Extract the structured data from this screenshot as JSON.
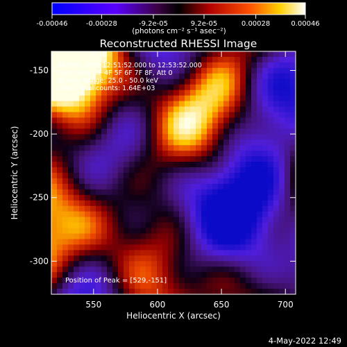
{
  "colorbar": {
    "ticks": [
      "-0.00046",
      "-0.00028",
      "-9.2e-05",
      "9.2e-05",
      "0.00028",
      "0.00046"
    ],
    "units": "(photons cm⁻² s⁻¹ asec⁻²)",
    "vmin": -0.00046,
    "vmax": 0.00046
  },
  "chart_data": {
    "type": "heatmap",
    "title": "Reconstructed RHESSI Image",
    "xlabel": "Heliocentric X (arcsec)",
    "ylabel": "Heliocentric Y (arcsec)",
    "xlim": [
      517,
      708
    ],
    "ylim": [
      -326,
      -135
    ],
    "x_ticks": [
      550,
      600,
      650,
      700
    ],
    "y_ticks": [
      -150,
      -200,
      -250,
      -300
    ],
    "annotations": {
      "time": "04-Dec-2002 12:51:52.000 to 12:53:52.000",
      "detectors": "Detectors: 3F 4F 5F 6F 7F 8F, Att 0",
      "energy": "Energy Range: 25.0 - 50.0 keV",
      "method": "Clean     Total counts: 1.64E+03",
      "peak": "Position of Peak = [529,-151]"
    },
    "peak_position": [
      529,
      -151
    ],
    "colormap": "blue-purple-red-yellow-white"
  },
  "footer": {
    "date": "4-May-2022 12:49"
  }
}
